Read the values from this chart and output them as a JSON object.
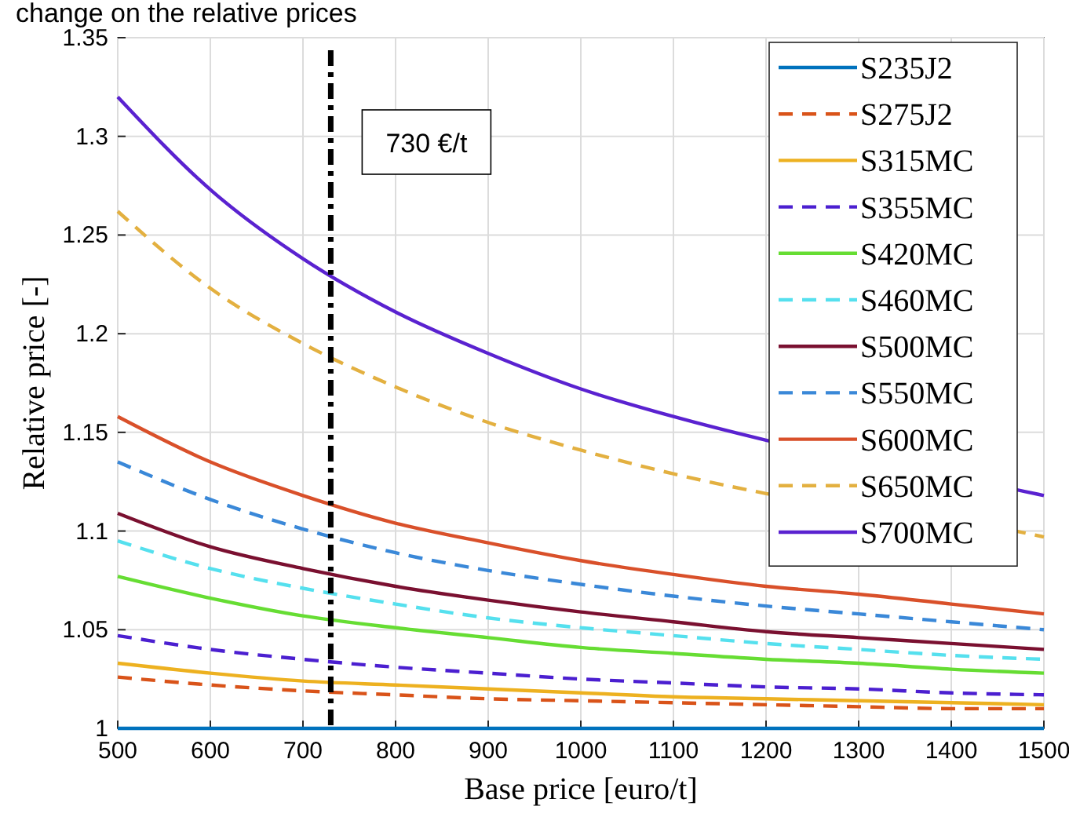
{
  "chart_data": {
    "type": "line",
    "title": "change on the relative prices",
    "xlabel": "Base price [euro/t]",
    "ylabel": "Relative price [-]",
    "x": [
      500,
      600,
      700,
      800,
      900,
      1000,
      1100,
      1200,
      1300,
      1400,
      1500
    ],
    "xlim": [
      500,
      1500
    ],
    "xticks": [
      500,
      600,
      700,
      800,
      900,
      1000,
      1100,
      1200,
      1300,
      1400,
      1500
    ],
    "ylim": [
      1,
      1.35
    ],
    "yticks": [
      1,
      1.05,
      1.1,
      1.15,
      1.2,
      1.25,
      1.3,
      1.35
    ],
    "grid": true,
    "legend": "top right",
    "marker": "none",
    "ref_lines": [
      {
        "axis": "x",
        "value": 730,
        "label": "730 €/t",
        "color": "#000000",
        "line_style": "dashdot"
      }
    ],
    "series": [
      {
        "name": "S235J2",
        "color": "#0072bd",
        "line_style": "solid",
        "values": [
          1,
          1,
          1,
          1,
          1,
          1,
          1,
          1,
          1,
          1,
          1
        ]
      },
      {
        "name": "S275J2",
        "color": "#d95319",
        "line_style": "dashed",
        "values": [
          1.026,
          1.022,
          1.019,
          1.017,
          1.015,
          1.014,
          1.013,
          1.012,
          1.011,
          1.01,
          1.01
        ]
      },
      {
        "name": "S315MC",
        "color": "#edb120",
        "line_style": "solid",
        "values": [
          1.033,
          1.028,
          1.024,
          1.022,
          1.02,
          1.018,
          1.016,
          1.015,
          1.014,
          1.013,
          1.012
        ]
      },
      {
        "name": "S355MC",
        "color": "#4b1fd0",
        "line_style": "dashed",
        "values": [
          1.047,
          1.04,
          1.035,
          1.031,
          1.028,
          1.025,
          1.023,
          1.021,
          1.02,
          1.018,
          1.017
        ]
      },
      {
        "name": "S420MC",
        "color": "#66dd33",
        "line_style": "solid",
        "values": [
          1.077,
          1.066,
          1.057,
          1.051,
          1.046,
          1.041,
          1.038,
          1.035,
          1.033,
          1.03,
          1.028
        ]
      },
      {
        "name": "S460MC",
        "color": "#55e0ee",
        "line_style": "dashed",
        "values": [
          1.095,
          1.081,
          1.071,
          1.063,
          1.056,
          1.051,
          1.047,
          1.043,
          1.04,
          1.037,
          1.035
        ]
      },
      {
        "name": "S500MC",
        "color": "#7a1030",
        "line_style": "solid",
        "values": [
          1.109,
          1.092,
          1.081,
          1.072,
          1.065,
          1.059,
          1.054,
          1.049,
          1.046,
          1.043,
          1.04
        ]
      },
      {
        "name": "S550MC",
        "color": "#3a88d8",
        "line_style": "dashed",
        "values": [
          1.135,
          1.116,
          1.101,
          1.089,
          1.08,
          1.073,
          1.067,
          1.062,
          1.058,
          1.054,
          1.05
        ]
      },
      {
        "name": "S600MC",
        "color": "#d9502a",
        "line_style": "solid",
        "values": [
          1.158,
          1.135,
          1.118,
          1.104,
          1.094,
          1.085,
          1.078,
          1.072,
          1.068,
          1.063,
          1.058
        ]
      },
      {
        "name": "S650MC",
        "color": "#e3b040",
        "line_style": "dashed",
        "x": [
          500,
          600,
          700,
          800,
          900,
          1000,
          1100,
          1200,
          1480,
          1500
        ],
        "values": [
          1.262,
          1.223,
          1.195,
          1.173,
          1.155,
          1.141,
          1.129,
          1.119,
          1.099,
          1.097
        ]
      },
      {
        "name": "S700MC",
        "color": "#5a22d0",
        "line_style": "solid",
        "x": [
          500,
          600,
          700,
          800,
          900,
          1000,
          1100,
          1200,
          1480,
          1500
        ],
        "values": [
          1.32,
          1.273,
          1.238,
          1.211,
          1.19,
          1.172,
          1.158,
          1.146,
          1.12,
          1.118
        ]
      }
    ]
  }
}
